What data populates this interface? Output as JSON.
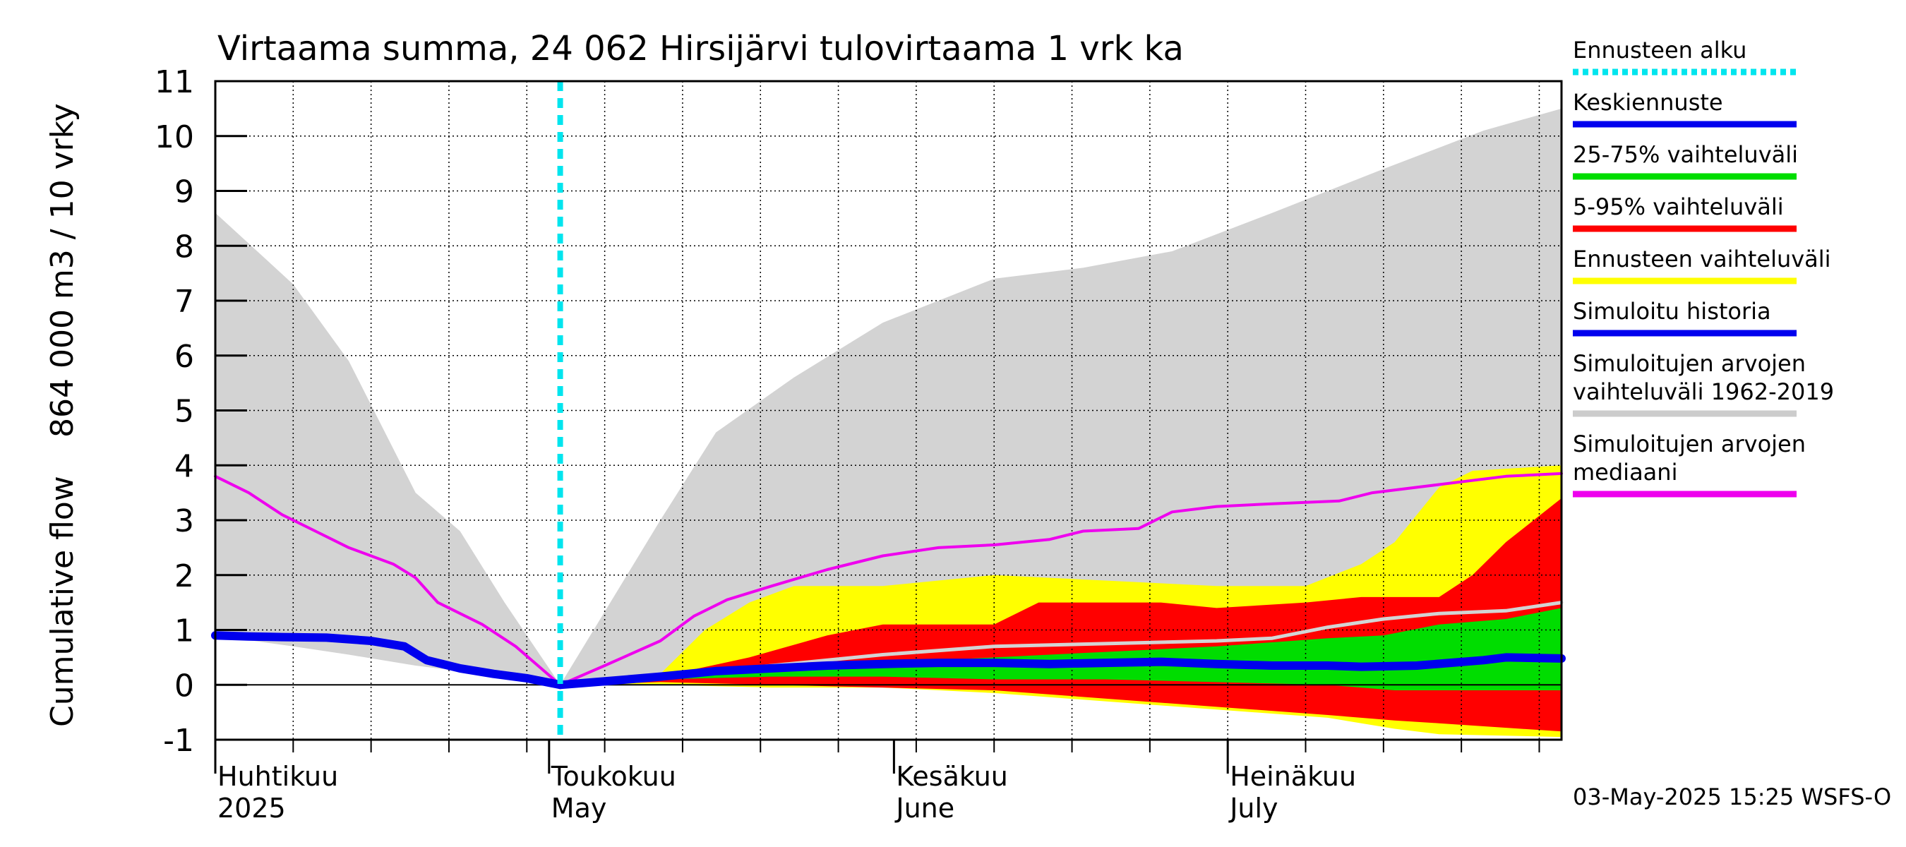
{
  "chart_data": {
    "type": "area",
    "title": "Virtaama summa, 24 062 Hirsijärvi tulovirtaama 1 vrk ka",
    "ylabel_top": "864 000 m3 / 10 vrky",
    "ylabel_bottom": "Cumulative flow",
    "ylim": [
      -1,
      11
    ],
    "yticks": [
      "-1",
      "0",
      "1",
      "2",
      "3",
      "4",
      "5",
      "6",
      "7",
      "8",
      "9",
      "10",
      "11"
    ],
    "x_range": [
      "2025-04-01",
      "2025-07-31"
    ],
    "grid": true,
    "month_labels": [
      {
        "date": "2025-04-01",
        "fi": "Huhtikuu",
        "en": "2025"
      },
      {
        "date": "2025-05-01",
        "fi": "Toukokuu",
        "en": "May"
      },
      {
        "date": "2025-06-01",
        "fi": "Kesäkuu",
        "en": "June"
      },
      {
        "date": "2025-07-01",
        "fi": "Heinäkuu",
        "en": "July"
      }
    ],
    "forecast_start": "2025-05-02",
    "footer": "03-May-2025 15:25 WSFS-O",
    "legend": [
      {
        "label": "Ennusteen alku",
        "color": "#00e5ee",
        "style": "dotted"
      },
      {
        "label": "Keskiennuste",
        "color": "#0000ee",
        "style": "line"
      },
      {
        "label": "25-75% vaihteluväli",
        "color": "#00dd00",
        "style": "line"
      },
      {
        "label": "5-95% vaihteluväli",
        "color": "#ff0000",
        "style": "line"
      },
      {
        "label": "Ennusteen vaihteluväli",
        "color": "#ffff00",
        "style": "line"
      },
      {
        "label": "Simuloitu historia",
        "color": "#0000ee",
        "style": "line"
      },
      {
        "label": "Simuloitujen arvojen\nvaihteluväli 1962-2019",
        "color": "#cccccc",
        "style": "line"
      },
      {
        "label": "Simuloitujen arvojen\nmediaani",
        "color": "#ee00ee",
        "style": "line"
      }
    ],
    "series": {
      "hist_range": {
        "color": "#d3d3d3",
        "upper": [
          [
            0,
            8.6
          ],
          [
            7,
            7.3
          ],
          [
            12,
            5.9
          ],
          [
            18,
            3.5
          ],
          [
            22,
            2.8
          ],
          [
            26,
            1.5
          ],
          [
            30,
            0.3
          ],
          [
            31,
            0
          ]
        ],
        "lower": [
          [
            0,
            0.9
          ],
          [
            7,
            0.7
          ],
          [
            12,
            0.55
          ],
          [
            18,
            0.35
          ],
          [
            24,
            0.2
          ],
          [
            31,
            0
          ]
        ],
        "upper_after": [
          [
            31,
            0
          ],
          [
            40,
            3.0
          ],
          [
            45,
            4.6
          ],
          [
            52,
            5.6
          ],
          [
            60,
            6.6
          ],
          [
            70,
            7.4
          ],
          [
            78,
            7.6
          ],
          [
            86,
            7.9
          ],
          [
            95,
            8.6
          ],
          [
            105,
            9.4
          ],
          [
            114,
            10.1
          ],
          [
            121,
            10.5
          ]
        ],
        "lower_after": [
          [
            31,
            0
          ],
          [
            37,
            0.1
          ],
          [
            45,
            0.3
          ],
          [
            60,
            0.6
          ],
          [
            80,
            0.9
          ],
          [
            100,
            1.5
          ],
          [
            110,
            2.5
          ],
          [
            121,
            3.5
          ]
        ]
      },
      "yellow": {
        "color": "#ffff00",
        "upper": [
          [
            32,
            0
          ],
          [
            40,
            0.2
          ],
          [
            44,
            1.0
          ],
          [
            48,
            1.5
          ],
          [
            52,
            1.8
          ],
          [
            60,
            1.8
          ],
          [
            70,
            2.0
          ],
          [
            80,
            1.9
          ],
          [
            90,
            1.8
          ],
          [
            98,
            1.8
          ],
          [
            103,
            2.2
          ],
          [
            106,
            2.6
          ],
          [
            110,
            3.6
          ],
          [
            113,
            3.9
          ],
          [
            121,
            4.0
          ]
        ],
        "lower": [
          [
            32,
            0
          ],
          [
            40,
            0.0
          ],
          [
            50,
            -0.05
          ],
          [
            60,
            -0.05
          ],
          [
            70,
            -0.15
          ],
          [
            80,
            -0.3
          ],
          [
            90,
            -0.45
          ],
          [
            100,
            -0.6
          ],
          [
            106,
            -0.8
          ],
          [
            110,
            -0.9
          ],
          [
            121,
            -0.95
          ]
        ]
      },
      "red": {
        "color": "#ff0000",
        "upper": [
          [
            32,
            0
          ],
          [
            40,
            0.15
          ],
          [
            48,
            0.5
          ],
          [
            55,
            0.9
          ],
          [
            60,
            1.1
          ],
          [
            70,
            1.1
          ],
          [
            74,
            1.5
          ],
          [
            85,
            1.5
          ],
          [
            90,
            1.4
          ],
          [
            98,
            1.5
          ],
          [
            103,
            1.6
          ],
          [
            110,
            1.6
          ],
          [
            113,
            2.0
          ],
          [
            116,
            2.6
          ],
          [
            121,
            3.4
          ]
        ],
        "lower": [
          [
            32,
            0
          ],
          [
            40,
            0.05
          ],
          [
            50,
            0.0
          ],
          [
            60,
            -0.05
          ],
          [
            70,
            -0.1
          ],
          [
            80,
            -0.25
          ],
          [
            90,
            -0.4
          ],
          [
            100,
            -0.55
          ],
          [
            106,
            -0.65
          ],
          [
            110,
            -0.7
          ],
          [
            121,
            -0.85
          ]
        ]
      },
      "green": {
        "color": "#00dd00",
        "upper": [
          [
            32,
            0
          ],
          [
            40,
            0.15
          ],
          [
            50,
            0.3
          ],
          [
            60,
            0.4
          ],
          [
            70,
            0.5
          ],
          [
            80,
            0.6
          ],
          [
            90,
            0.7
          ],
          [
            100,
            0.85
          ],
          [
            105,
            0.9
          ],
          [
            110,
            1.1
          ],
          [
            116,
            1.2
          ],
          [
            121,
            1.4
          ]
        ],
        "lower": [
          [
            32,
            0
          ],
          [
            40,
            0.1
          ],
          [
            50,
            0.15
          ],
          [
            60,
            0.15
          ],
          [
            70,
            0.1
          ],
          [
            80,
            0.1
          ],
          [
            90,
            0.05
          ],
          [
            100,
            0.0
          ],
          [
            106,
            -0.1
          ],
          [
            110,
            -0.1
          ],
          [
            121,
            -0.1
          ]
        ]
      },
      "hist_median_gray": {
        "color": "#d3d3d3",
        "points": [
          [
            32,
            0
          ],
          [
            40,
            0.15
          ],
          [
            50,
            0.35
          ],
          [
            60,
            0.55
          ],
          [
            70,
            0.7
          ],
          [
            80,
            0.75
          ],
          [
            90,
            0.8
          ],
          [
            95,
            0.85
          ],
          [
            100,
            1.05
          ],
          [
            105,
            1.2
          ],
          [
            110,
            1.3
          ],
          [
            116,
            1.35
          ],
          [
            121,
            1.5
          ]
        ]
      },
      "median": {
        "color": "#ee00ee",
        "points": [
          [
            0,
            3.8
          ],
          [
            3,
            3.5
          ],
          [
            6,
            3.1
          ],
          [
            9,
            2.8
          ],
          [
            12,
            2.5
          ],
          [
            16,
            2.2
          ],
          [
            18,
            1.95
          ],
          [
            20,
            1.5
          ],
          [
            24,
            1.1
          ],
          [
            27,
            0.7
          ],
          [
            31,
            0
          ],
          [
            35,
            0.35
          ],
          [
            40,
            0.8
          ],
          [
            43,
            1.25
          ],
          [
            46,
            1.55
          ],
          [
            50,
            1.8
          ],
          [
            55,
            2.1
          ],
          [
            60,
            2.35
          ],
          [
            65,
            2.5
          ],
          [
            70,
            2.55
          ],
          [
            75,
            2.65
          ],
          [
            78,
            2.8
          ],
          [
            83,
            2.85
          ],
          [
            86,
            3.15
          ],
          [
            90,
            3.25
          ],
          [
            95,
            3.3
          ],
          [
            101,
            3.35
          ],
          [
            104,
            3.5
          ],
          [
            110,
            3.65
          ],
          [
            116,
            3.8
          ],
          [
            121,
            3.85
          ]
        ]
      },
      "simulated_history": {
        "color": "#0000ee",
        "points": [
          [
            0,
            0.9
          ],
          [
            3,
            0.88
          ],
          [
            6,
            0.87
          ],
          [
            10,
            0.86
          ],
          [
            14,
            0.8
          ],
          [
            17,
            0.7
          ],
          [
            19,
            0.45
          ],
          [
            22,
            0.3
          ],
          [
            25,
            0.2
          ],
          [
            28,
            0.12
          ],
          [
            31,
            0
          ]
        ]
      },
      "mean_forecast": {
        "color": "#0000ee",
        "points": [
          [
            31,
            0
          ],
          [
            36,
            0.08
          ],
          [
            40,
            0.15
          ],
          [
            45,
            0.25
          ],
          [
            50,
            0.3
          ],
          [
            55,
            0.35
          ],
          [
            60,
            0.38
          ],
          [
            65,
            0.4
          ],
          [
            70,
            0.4
          ],
          [
            75,
            0.38
          ],
          [
            80,
            0.4
          ],
          [
            85,
            0.42
          ],
          [
            90,
            0.38
          ],
          [
            95,
            0.35
          ],
          [
            100,
            0.35
          ],
          [
            103,
            0.33
          ],
          [
            108,
            0.35
          ],
          [
            111,
            0.4
          ],
          [
            114,
            0.45
          ],
          [
            116,
            0.5
          ],
          [
            121,
            0.48
          ]
        ]
      }
    }
  }
}
